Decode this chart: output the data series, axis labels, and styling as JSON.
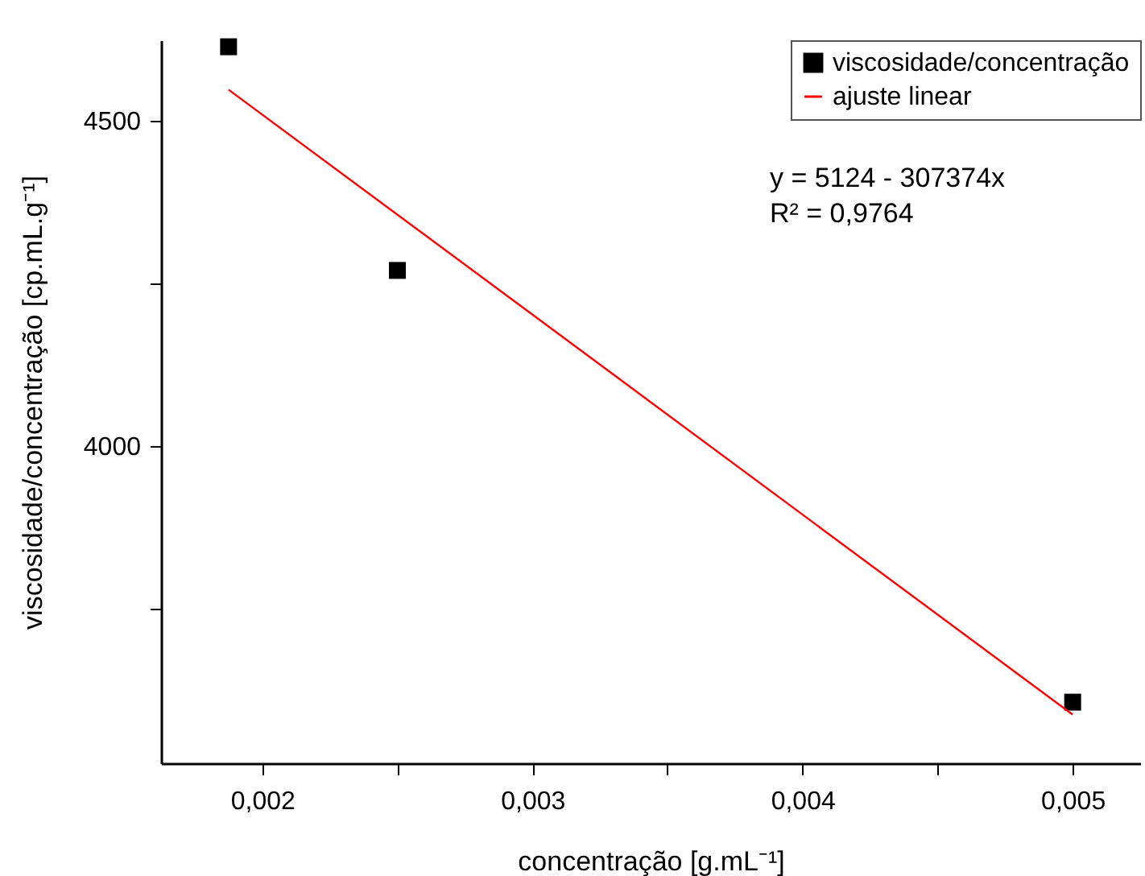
{
  "chart_data": {
    "type": "scatter",
    "xlabel": "concentração [g.mL⁻¹]",
    "ylabel": "viscosidade/concentração [cp.mL.g⁻¹]",
    "xlim": [
      0.001625,
      0.00525
    ],
    "ylim": [
      3512,
      4624
    ],
    "xticks": [
      {
        "value": 0.002,
        "label": "0,002"
      },
      {
        "value": 0.0025,
        "label": null
      },
      {
        "value": 0.003,
        "label": "0,003"
      },
      {
        "value": 0.0035,
        "label": null
      },
      {
        "value": 0.004,
        "label": "0,004"
      },
      {
        "value": 0.0045,
        "label": null
      },
      {
        "value": 0.005,
        "label": "0,005"
      }
    ],
    "yticks": [
      {
        "value": 3750,
        "label": null
      },
      4000,
      {
        "value": 4250,
        "label": null
      },
      4500
    ],
    "legend": "top right",
    "grid": false,
    "annotations": [
      "y = 5124 - 307374x",
      "R² = 0,9764"
    ],
    "series": [
      {
        "name": "viscosidade/concentração",
        "marker": "square",
        "color": "#000000",
        "x": [
          0.001875,
          0.0025,
          0.005
        ],
        "values": [
          4614,
          4270,
          3606
        ]
      },
      {
        "name": "ajuste linear",
        "type": "line",
        "marker": "none",
        "color": "#ff0000",
        "x": [
          0.001875,
          0.005
        ],
        "values": [
          4548,
          3587
        ]
      }
    ]
  }
}
